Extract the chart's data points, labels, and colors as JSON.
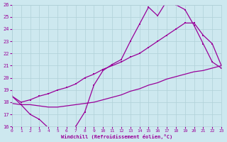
{
  "xlabel": "Windchill (Refroidissement éolien,°C)",
  "bg_color": "#cde8ef",
  "grid_color": "#b0d0d8",
  "line_color": "#990099",
  "xmin": 0,
  "xmax": 23,
  "ymin": 16,
  "ymax": 26,
  "line1_x": [
    0,
    1,
    2,
    3,
    4,
    5,
    6,
    7,
    8,
    9,
    10,
    11,
    12,
    13,
    14,
    15,
    16,
    17,
    18,
    19,
    20,
    21,
    22,
    23
  ],
  "line1_y": [
    18.5,
    17.8,
    17.0,
    16.6,
    15.9,
    15.8,
    15.8,
    16.0,
    17.2,
    19.4,
    20.6,
    21.1,
    21.5,
    23.0,
    24.4,
    25.8,
    25.1,
    26.3,
    26.0,
    25.6,
    24.3,
    22.8,
    21.3,
    20.8
  ],
  "line2_x": [
    0,
    1,
    2,
    3,
    4,
    5,
    6,
    7,
    8,
    9,
    10,
    11,
    12,
    13,
    14,
    15,
    16,
    17,
    18,
    19,
    20,
    21,
    22,
    23
  ],
  "line2_y": [
    18.5,
    18.0,
    18.2,
    18.5,
    18.7,
    19.0,
    19.2,
    19.5,
    20.0,
    20.3,
    20.7,
    21.0,
    21.3,
    21.7,
    22.0,
    22.5,
    23.0,
    23.5,
    24.0,
    24.5,
    24.5,
    23.5,
    22.8,
    21.0
  ],
  "line3_x": [
    0,
    1,
    2,
    3,
    4,
    5,
    6,
    7,
    8,
    9,
    10,
    11,
    12,
    13,
    14,
    15,
    16,
    17,
    18,
    19,
    20,
    21,
    22,
    23
  ],
  "line3_y": [
    17.9,
    17.8,
    17.8,
    17.7,
    17.6,
    17.6,
    17.7,
    17.8,
    17.9,
    18.0,
    18.2,
    18.4,
    18.6,
    18.9,
    19.1,
    19.4,
    19.6,
    19.9,
    20.1,
    20.3,
    20.5,
    20.6,
    20.8,
    21.0
  ]
}
